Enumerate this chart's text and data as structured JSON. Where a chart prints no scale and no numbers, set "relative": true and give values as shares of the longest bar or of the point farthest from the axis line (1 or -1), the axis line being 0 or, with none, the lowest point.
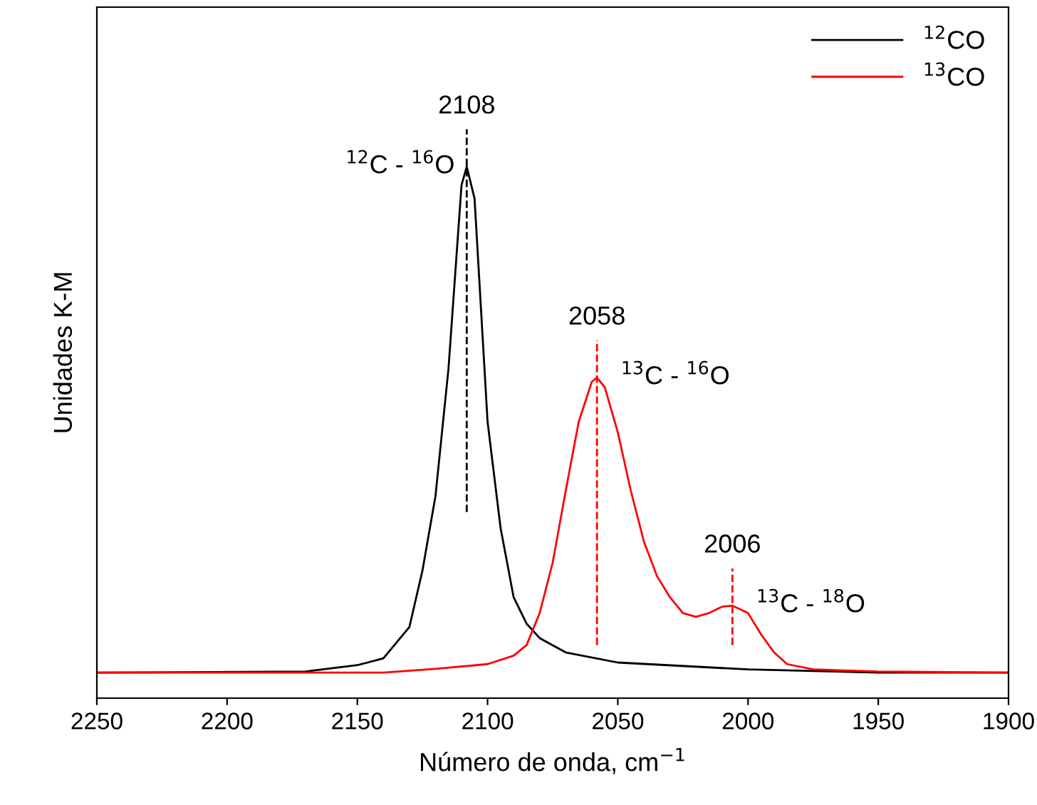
{
  "chart_data": {
    "type": "line",
    "relative": true,
    "xlabel": "Número de onda, cm$^{−1}$",
    "ylabel": "Unidades K-M",
    "xlim": [
      2250,
      1900
    ],
    "xticks": [
      2250,
      2200,
      2150,
      2100,
      2050,
      2000,
      1950,
      1900
    ],
    "legend": "top right",
    "grid": false,
    "marker": "none",
    "line_style": "solid",
    "series": [
      {
        "name": "$^{12}$CO",
        "color": "#000000",
        "x": [
          2250,
          2170,
          2150,
          2140,
          2130,
          2125,
          2120,
          2115,
          2110,
          2108,
          2105,
          2100,
          2095,
          2090,
          2085,
          2080,
          2070,
          2050,
          2000,
          1950,
          1900
        ],
        "values": [
          0.048,
          0.05,
          0.062,
          0.075,
          0.134,
          0.24,
          0.38,
          0.62,
          0.965,
          1.0,
          0.94,
          0.52,
          0.32,
          0.19,
          0.14,
          0.113,
          0.086,
          0.067,
          0.054,
          0.048,
          0.048
        ]
      },
      {
        "name": "$^{13}$CO",
        "color": "#ff0000",
        "x": [
          2250,
          2140,
          2120,
          2100,
          2090,
          2085,
          2080,
          2075,
          2070,
          2065,
          2060,
          2058,
          2055,
          2050,
          2045,
          2040,
          2035,
          2030,
          2025,
          2020,
          2015,
          2010,
          2006,
          2000,
          1995,
          1990,
          1985,
          1975,
          1950,
          1900
        ],
        "values": [
          0.048,
          0.048,
          0.055,
          0.064,
          0.08,
          0.1,
          0.16,
          0.255,
          0.39,
          0.52,
          0.595,
          0.603,
          0.585,
          0.5,
          0.39,
          0.295,
          0.23,
          0.19,
          0.16,
          0.153,
          0.16,
          0.172,
          0.174,
          0.16,
          0.12,
          0.086,
          0.064,
          0.054,
          0.05,
          0.048
        ]
      }
    ],
    "ref_lines": [
      {
        "axis": "x",
        "value": 2108,
        "label": "2108",
        "color": "#000000",
        "line_style": "dashed"
      },
      {
        "axis": "x",
        "value": 2058,
        "label": "2058",
        "color": "#ff0000",
        "line_style": "dashed"
      },
      {
        "axis": "x",
        "value": 2006,
        "label": "2006",
        "color": "#ff0000",
        "line_style": "dashed"
      }
    ],
    "annotations": [
      {
        "text": "$^{12}$C - $^{16}$O",
        "x": 2108,
        "y": 1.0
      },
      {
        "text": "$^{13}$C - $^{16}$O",
        "x": 2058,
        "y": 0.603
      },
      {
        "text": "$^{13}$C - $^{18}$O",
        "x": 2006,
        "y": 0.174
      }
    ]
  }
}
